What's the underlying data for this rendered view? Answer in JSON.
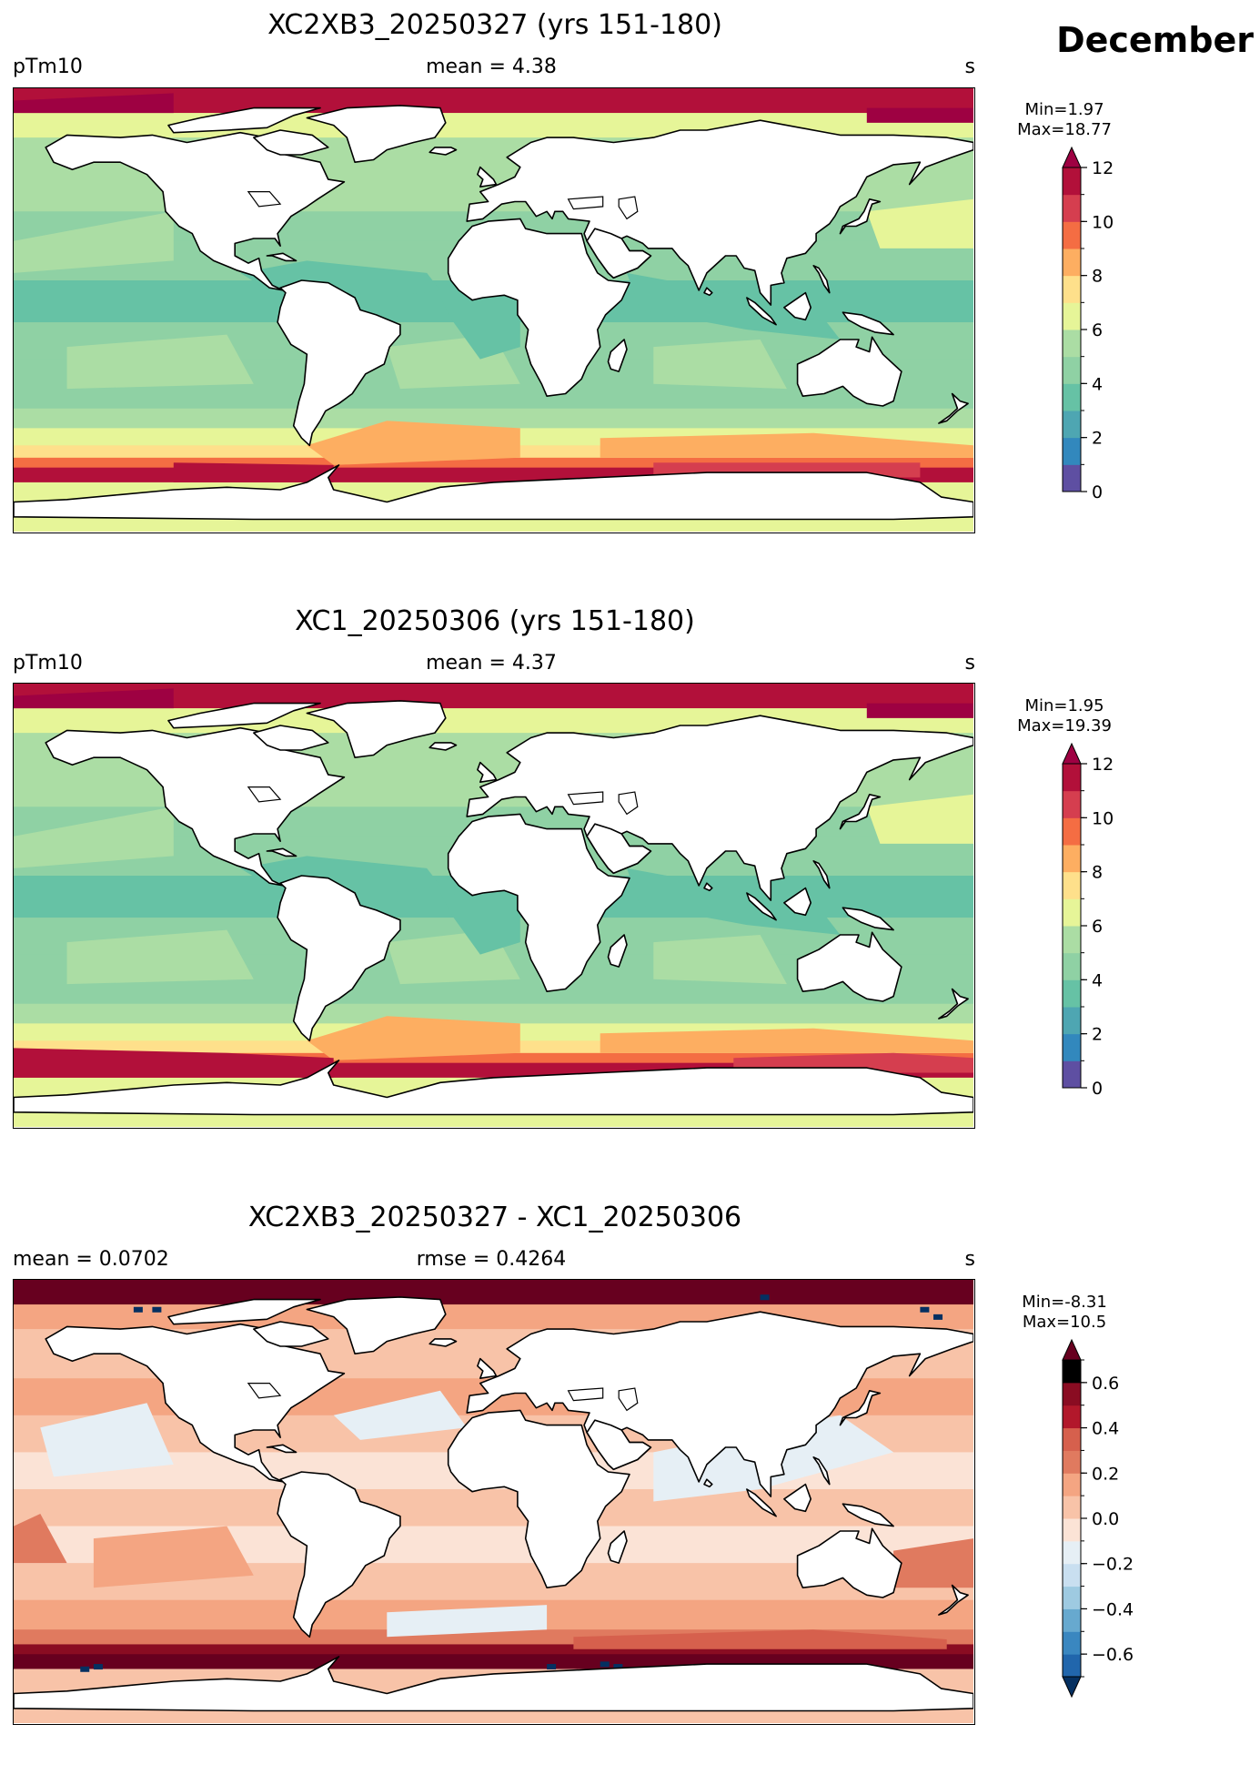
{
  "month_label": "December",
  "panels": [
    {
      "title": "XC2XB3_20250327 (yrs 151-180)",
      "left_label": "pTm10",
      "center_label": "mean = 4.38",
      "unit": "s",
      "min_label": "Min=1.97",
      "max_label": "Max=18.77",
      "kind": "sequential"
    },
    {
      "title": "XC1_20250306 (yrs 151-180)",
      "left_label": "pTm10",
      "center_label": "mean = 4.37",
      "unit": "s",
      "min_label": "Min=1.95",
      "max_label": "Max=19.39",
      "kind": "sequential"
    },
    {
      "title": "XC2XB3_20250327 - XC1_20250306",
      "left_label": "mean = 0.0702",
      "center_label": "rmse = 0.4264",
      "unit": "s",
      "min_label": "Min=-8.31",
      "max_label": "Max=10.5",
      "kind": "diverging"
    }
  ],
  "chart_data": [
    {
      "type": "heatmap",
      "title": "XC2XB3_20250327 (yrs 151-180)",
      "variable": "pTm10",
      "unit": "s",
      "mean": 4.38,
      "min": 1.97,
      "max": 18.77,
      "colorbar": {
        "levels": [
          0,
          1,
          2,
          3,
          4,
          5,
          6,
          7,
          8,
          9,
          10,
          11,
          12
        ],
        "tick_labels": [
          "0",
          "2",
          "4",
          "6",
          "8",
          "10",
          "12"
        ],
        "extend": "max",
        "colors": [
          "#5e4fa2",
          "#3288bd",
          "#4ea6b2",
          "#66c2a5",
          "#8fd1a4",
          "#abdda4",
          "#e6f598",
          "#fee08b",
          "#fdae61",
          "#f46d43",
          "#d53e4f",
          "#b2103a",
          "#9e0142"
        ]
      }
    },
    {
      "type": "heatmap",
      "title": "XC1_20250306 (yrs 151-180)",
      "variable": "pTm10",
      "unit": "s",
      "mean": 4.37,
      "min": 1.95,
      "max": 19.39,
      "colorbar": {
        "levels": [
          0,
          1,
          2,
          3,
          4,
          5,
          6,
          7,
          8,
          9,
          10,
          11,
          12
        ],
        "tick_labels": [
          "0",
          "2",
          "4",
          "6",
          "8",
          "10",
          "12"
        ],
        "extend": "max",
        "colors": [
          "#5e4fa2",
          "#3288bd",
          "#4ea6b2",
          "#66c2a5",
          "#8fd1a4",
          "#abdda4",
          "#e6f598",
          "#fee08b",
          "#fdae61",
          "#f46d43",
          "#d53e4f",
          "#b2103a",
          "#9e0142"
        ]
      }
    },
    {
      "type": "heatmap",
      "title": "XC2XB3_20250327 - XC1_20250306",
      "unit": "s",
      "mean": 0.0702,
      "rmse": 0.4264,
      "min": -8.31,
      "max": 10.5,
      "colorbar": {
        "levels": [
          -0.7,
          -0.6,
          -0.5,
          -0.4,
          -0.3,
          -0.2,
          -0.1,
          0.0,
          0.1,
          0.2,
          0.3,
          0.4,
          0.5,
          0.6,
          0.7
        ],
        "tick_labels": [
          "−0.6",
          "−0.4",
          "−0.2",
          "0.0",
          "0.2",
          "0.4",
          "0.6"
        ],
        "tick_values": [
          -0.6,
          -0.4,
          -0.2,
          0.0,
          0.2,
          0.4,
          0.6
        ],
        "extend": "both",
        "colors": [
          "#053061",
          "#2166ac",
          "#3a87c0",
          "#67a9cf",
          "#9ecae1",
          "#c9dff0",
          "#e6eff5",
          "#fbe3d6",
          "#f8c3a8",
          "#f4a582",
          "#e07a5f",
          "#d6604d",
          "#b2182b",
          "#8a0c22",
          "#67001f"
        ]
      }
    }
  ]
}
